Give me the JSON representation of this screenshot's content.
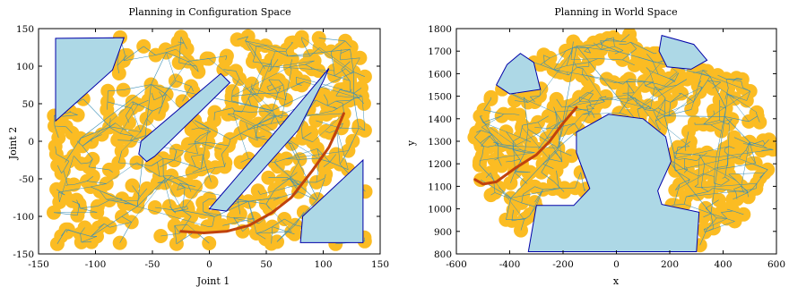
{
  "chart_data": [
    {
      "type": "scatter",
      "title": "Planning in Configuration Space",
      "xlabel": "Joint 1",
      "ylabel": "Joint 2",
      "xlim": [
        -150,
        150
      ],
      "ylim": [
        -150,
        150
      ],
      "xticks": [
        "-150",
        "-100",
        "-50",
        "0",
        "50",
        "100",
        "150"
      ],
      "yticks": [
        "-150",
        "-100",
        "-50",
        "0",
        "50",
        "100",
        "150"
      ],
      "grid": false,
      "colors": {
        "explored": "#fbbc23",
        "tree": "#3b8fb6",
        "obstacle_fill": "#add8e6",
        "obstacle_edge": "#0000a8",
        "path": "#c0420d"
      },
      "obstacles": [
        {
          "name": "obstacle-top-left",
          "points": [
            [
              -135,
              137
            ],
            [
              -75,
              138
            ],
            [
              -85,
              95
            ],
            [
              -135,
              27
            ]
          ]
        },
        {
          "name": "obstacle-diagonal-1",
          "points": [
            [
              -60,
              0
            ],
            [
              10,
              90
            ],
            [
              18,
              78
            ],
            [
              -48,
              -20
            ],
            [
              -55,
              -27
            ],
            [
              -62,
              -17
            ]
          ]
        },
        {
          "name": "obstacle-diagonal-2",
          "points": [
            [
              0,
              -90
            ],
            [
              65,
              25
            ],
            [
              105,
              97
            ],
            [
              100,
              80
            ],
            [
              78,
              15
            ],
            [
              15,
              -93
            ]
          ]
        },
        {
          "name": "obstacle-bottom-right",
          "points": [
            [
              80,
              -135
            ],
            [
              135,
              -135
            ],
            [
              135,
              -25
            ],
            [
              82,
              -100
            ]
          ]
        }
      ],
      "path": [
        [
          -25,
          -120
        ],
        [
          -5,
          -122
        ],
        [
          15,
          -120
        ],
        [
          35,
          -112
        ],
        [
          55,
          -95
        ],
        [
          72,
          -75
        ],
        [
          90,
          -40
        ],
        [
          105,
          -8
        ],
        [
          112,
          15
        ],
        [
          118,
          37
        ]
      ]
    },
    {
      "type": "scatter",
      "title": "Planning in World Space",
      "xlabel": "x",
      "ylabel": "y",
      "xlim": [
        -600,
        600
      ],
      "ylim": [
        800,
        1800
      ],
      "xticks": [
        "-600",
        "-400",
        "-200",
        "0",
        "200",
        "400",
        "600"
      ],
      "yticks": [
        "800",
        "900",
        "1000",
        "1100",
        "1200",
        "1300",
        "1400",
        "1500",
        "1600",
        "1700",
        "1800"
      ],
      "grid": false,
      "colors": {
        "explored": "#fbbc23",
        "tree": "#3b8fb6",
        "obstacle_fill": "#add8e6",
        "obstacle_edge": "#0000a8",
        "path": "#c0420d"
      },
      "obstacles": [
        {
          "name": "obstacle-upper-left",
          "points": [
            [
              -410,
              1640
            ],
            [
              -360,
              1690
            ],
            [
              -310,
              1650
            ],
            [
              -285,
              1530
            ],
            [
              -400,
              1510
            ],
            [
              -450,
              1550
            ]
          ]
        },
        {
          "name": "obstacle-upper-right",
          "points": [
            [
              170,
              1770
            ],
            [
              290,
              1730
            ],
            [
              340,
              1660
            ],
            [
              280,
              1620
            ],
            [
              190,
              1630
            ],
            [
              160,
              1700
            ]
          ]
        },
        {
          "name": "obstacle-center",
          "points": [
            [
              -150,
              1340
            ],
            [
              -30,
              1420
            ],
            [
              100,
              1400
            ],
            [
              185,
              1320
            ],
            [
              205,
              1210
            ],
            [
              155,
              1080
            ],
            [
              170,
              1020
            ],
            [
              310,
              985
            ],
            [
              300,
              810
            ],
            [
              -330,
              810
            ],
            [
              -300,
              1015
            ],
            [
              -160,
              1015
            ],
            [
              -100,
              1090
            ],
            [
              -150,
              1250
            ]
          ]
        }
      ],
      "path": [
        [
          -530,
          1130
        ],
        [
          -500,
          1110
        ],
        [
          -450,
          1120
        ],
        [
          -380,
          1180
        ],
        [
          -300,
          1240
        ],
        [
          -250,
          1300
        ],
        [
          -200,
          1380
        ],
        [
          -150,
          1450
        ]
      ]
    }
  ]
}
